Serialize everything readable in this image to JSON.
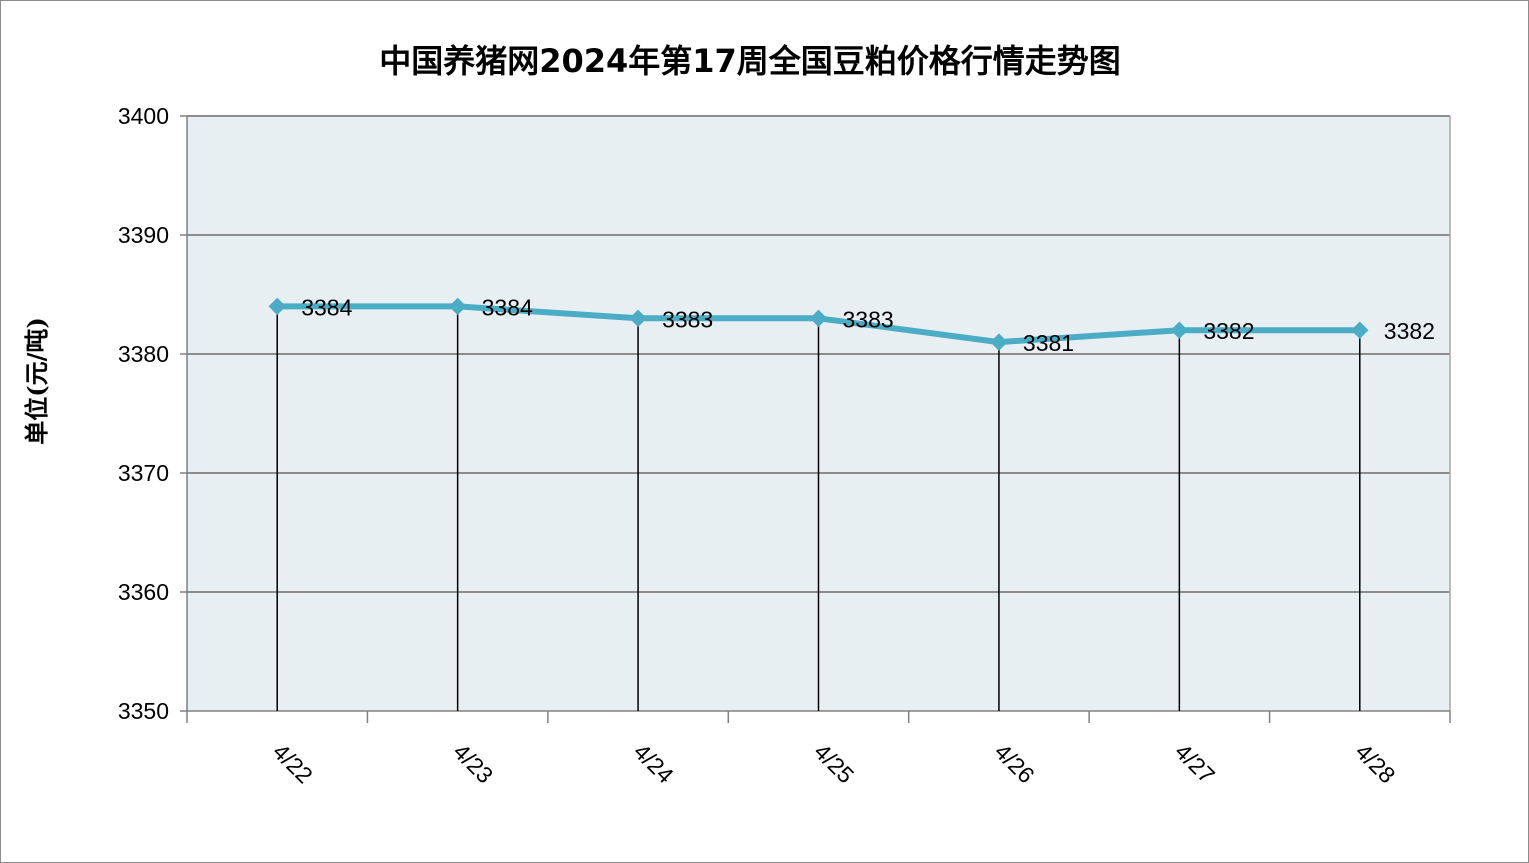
{
  "chart_data": {
    "type": "line",
    "title": "中国养猪网2024年第17周全国豆粕价格行情走势图",
    "ylabel": "单位(元/吨)",
    "xlabel": "",
    "categories": [
      "4/22",
      "4/23",
      "4/24",
      "4/25",
      "4/26",
      "4/27",
      "4/28"
    ],
    "values": [
      3384,
      3384,
      3383,
      3383,
      3381,
      3382,
      3382
    ],
    "data_labels": [
      "3384",
      "3384",
      "3383",
      "3383",
      "3381",
      "3382",
      "3382"
    ],
    "ylim": [
      3350,
      3400
    ],
    "yticks": [
      3350,
      3360,
      3370,
      3380,
      3390,
      3400
    ],
    "ytick_labels": [
      "3350",
      "3360",
      "3370",
      "3380",
      "3390",
      "3400"
    ],
    "grid": true,
    "drop_lines": true,
    "colors": {
      "line": "#4bacc6",
      "plot_background": "#e8eff3",
      "gridline": "#8c8c8c",
      "drop_line": "#000000"
    }
  }
}
